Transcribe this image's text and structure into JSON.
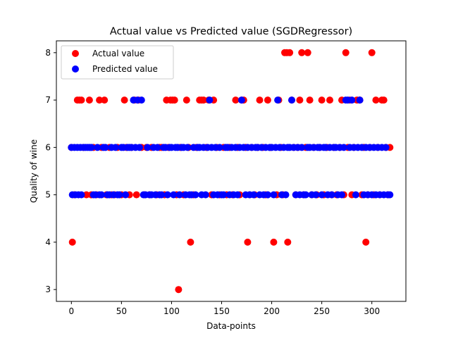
{
  "chart_data": {
    "type": "scatter",
    "title": "Actual value vs Predicted value (SGDRegressor)",
    "xlabel": "Data-points",
    "ylabel": "Quality of wine",
    "xlim": [
      -15,
      334
    ],
    "ylim": [
      2.75,
      8.25
    ],
    "xticks": [
      0,
      50,
      100,
      150,
      200,
      250,
      300
    ],
    "yticks": [
      3,
      4,
      5,
      6,
      7,
      8
    ],
    "grid": false,
    "legend_position": "top-left",
    "series": [
      {
        "name": "Actual value",
        "color": "#ff0000",
        "points": [
          [
            0,
            6
          ],
          [
            1,
            4
          ],
          [
            3,
            5
          ],
          [
            6,
            7
          ],
          [
            8,
            7
          ],
          [
            10,
            7
          ],
          [
            12,
            6
          ],
          [
            15,
            5
          ],
          [
            18,
            7
          ],
          [
            20,
            5
          ],
          [
            22,
            6
          ],
          [
            25,
            5
          ],
          [
            28,
            7
          ],
          [
            30,
            6
          ],
          [
            33,
            7
          ],
          [
            35,
            5
          ],
          [
            38,
            6
          ],
          [
            40,
            5
          ],
          [
            43,
            5
          ],
          [
            46,
            6
          ],
          [
            50,
            5
          ],
          [
            53,
            7
          ],
          [
            55,
            6
          ],
          [
            58,
            5
          ],
          [
            60,
            6
          ],
          [
            63,
            7
          ],
          [
            65,
            5
          ],
          [
            67,
            7
          ],
          [
            70,
            6
          ],
          [
            73,
            5
          ],
          [
            75,
            6
          ],
          [
            78,
            5
          ],
          [
            80,
            6
          ],
          [
            85,
            5
          ],
          [
            88,
            6
          ],
          [
            90,
            6
          ],
          [
            93,
            5
          ],
          [
            95,
            7
          ],
          [
            97,
            6
          ],
          [
            99,
            7
          ],
          [
            101,
            7
          ],
          [
            103,
            7
          ],
          [
            105,
            5
          ],
          [
            107,
            3
          ],
          [
            109,
            6
          ],
          [
            112,
            5
          ],
          [
            115,
            7
          ],
          [
            117,
            6
          ],
          [
            119,
            4
          ],
          [
            122,
            5
          ],
          [
            125,
            6
          ],
          [
            128,
            7
          ],
          [
            130,
            7
          ],
          [
            132,
            7
          ],
          [
            135,
            6
          ],
          [
            137,
            7
          ],
          [
            140,
            5
          ],
          [
            142,
            7
          ],
          [
            145,
            6
          ],
          [
            148,
            5
          ],
          [
            152,
            6
          ],
          [
            155,
            5
          ],
          [
            158,
            6
          ],
          [
            161,
            5
          ],
          [
            164,
            7
          ],
          [
            166,
            6
          ],
          [
            168,
            5
          ],
          [
            170,
            7
          ],
          [
            172,
            7
          ],
          [
            174,
            6
          ],
          [
            176,
            4
          ],
          [
            178,
            5
          ],
          [
            180,
            6
          ],
          [
            183,
            5
          ],
          [
            186,
            6
          ],
          [
            188,
            7
          ],
          [
            191,
            6
          ],
          [
            194,
            5
          ],
          [
            196,
            7
          ],
          [
            199,
            6
          ],
          [
            202,
            4
          ],
          [
            205,
            5
          ],
          [
            207,
            7
          ],
          [
            209,
            6
          ],
          [
            211,
            5
          ],
          [
            213,
            8
          ],
          [
            215,
            8
          ],
          [
            216,
            4
          ],
          [
            218,
            8
          ],
          [
            220,
            7
          ],
          [
            222,
            6
          ],
          [
            224,
            5
          ],
          [
            226,
            6
          ],
          [
            228,
            7
          ],
          [
            230,
            8
          ],
          [
            232,
            5
          ],
          [
            234,
            6
          ],
          [
            236,
            8
          ],
          [
            238,
            7
          ],
          [
            240,
            5
          ],
          [
            242,
            6
          ],
          [
            245,
            5
          ],
          [
            248,
            6
          ],
          [
            250,
            7
          ],
          [
            252,
            5
          ],
          [
            255,
            6
          ],
          [
            258,
            7
          ],
          [
            260,
            5
          ],
          [
            262,
            6
          ],
          [
            265,
            5
          ],
          [
            268,
            6
          ],
          [
            270,
            7
          ],
          [
            272,
            5
          ],
          [
            274,
            8
          ],
          [
            276,
            6
          ],
          [
            278,
            7
          ],
          [
            280,
            5
          ],
          [
            282,
            6
          ],
          [
            285,
            7
          ],
          [
            288,
            7
          ],
          [
            290,
            5
          ],
          [
            292,
            6
          ],
          [
            294,
            4
          ],
          [
            296,
            5
          ],
          [
            298,
            6
          ],
          [
            300,
            8
          ],
          [
            302,
            5
          ],
          [
            304,
            7
          ],
          [
            306,
            6
          ],
          [
            308,
            5
          ],
          [
            310,
            7
          ],
          [
            312,
            7
          ],
          [
            314,
            6
          ],
          [
            316,
            5
          ],
          [
            318,
            6
          ]
        ]
      },
      {
        "name": "Predicted value",
        "color": "#0000ff",
        "points": [
          [
            0,
            6
          ],
          [
            1,
            5
          ],
          [
            3,
            6
          ],
          [
            4,
            5
          ],
          [
            6,
            6
          ],
          [
            7,
            5
          ],
          [
            9,
            6
          ],
          [
            10,
            5
          ],
          [
            12,
            6
          ],
          [
            14,
            6
          ],
          [
            16,
            6
          ],
          [
            18,
            6
          ],
          [
            20,
            6
          ],
          [
            22,
            5
          ],
          [
            24,
            5
          ],
          [
            26,
            6
          ],
          [
            28,
            5
          ],
          [
            30,
            5
          ],
          [
            32,
            6
          ],
          [
            34,
            6
          ],
          [
            36,
            5
          ],
          [
            38,
            5
          ],
          [
            40,
            6
          ],
          [
            42,
            5
          ],
          [
            44,
            6
          ],
          [
            46,
            5
          ],
          [
            48,
            5
          ],
          [
            50,
            6
          ],
          [
            52,
            6
          ],
          [
            54,
            5
          ],
          [
            56,
            6
          ],
          [
            58,
            6
          ],
          [
            60,
            6
          ],
          [
            62,
            7
          ],
          [
            64,
            6
          ],
          [
            66,
            7
          ],
          [
            68,
            6
          ],
          [
            70,
            7
          ],
          [
            72,
            5
          ],
          [
            74,
            5
          ],
          [
            76,
            6
          ],
          [
            78,
            5
          ],
          [
            80,
            5
          ],
          [
            82,
            6
          ],
          [
            84,
            5
          ],
          [
            86,
            6
          ],
          [
            88,
            5
          ],
          [
            90,
            5
          ],
          [
            92,
            6
          ],
          [
            94,
            6
          ],
          [
            96,
            5
          ],
          [
            98,
            6
          ],
          [
            100,
            6
          ],
          [
            102,
            5
          ],
          [
            104,
            6
          ],
          [
            106,
            6
          ],
          [
            108,
            5
          ],
          [
            110,
            6
          ],
          [
            112,
            6
          ],
          [
            114,
            5
          ],
          [
            116,
            6
          ],
          [
            118,
            5
          ],
          [
            120,
            5
          ],
          [
            122,
            6
          ],
          [
            124,
            5
          ],
          [
            126,
            6
          ],
          [
            128,
            6
          ],
          [
            130,
            5
          ],
          [
            132,
            6
          ],
          [
            134,
            5
          ],
          [
            136,
            6
          ],
          [
            138,
            7
          ],
          [
            140,
            6
          ],
          [
            142,
            5
          ],
          [
            144,
            6
          ],
          [
            146,
            5
          ],
          [
            148,
            6
          ],
          [
            150,
            5
          ],
          [
            152,
            5
          ],
          [
            154,
            6
          ],
          [
            156,
            6
          ],
          [
            158,
            5
          ],
          [
            160,
            6
          ],
          [
            162,
            5
          ],
          [
            164,
            6
          ],
          [
            166,
            5
          ],
          [
            168,
            6
          ],
          [
            170,
            7
          ],
          [
            172,
            6
          ],
          [
            174,
            5
          ],
          [
            176,
            6
          ],
          [
            178,
            5
          ],
          [
            180,
            6
          ],
          [
            182,
            5
          ],
          [
            184,
            6
          ],
          [
            186,
            6
          ],
          [
            188,
            5
          ],
          [
            190,
            6
          ],
          [
            192,
            5
          ],
          [
            194,
            6
          ],
          [
            196,
            5
          ],
          [
            198,
            6
          ],
          [
            200,
            6
          ],
          [
            202,
            5
          ],
          [
            204,
            6
          ],
          [
            206,
            7
          ],
          [
            208,
            6
          ],
          [
            210,
            5
          ],
          [
            212,
            6
          ],
          [
            214,
            5
          ],
          [
            216,
            6
          ],
          [
            218,
            6
          ],
          [
            220,
            7
          ],
          [
            222,
            6
          ],
          [
            224,
            5
          ],
          [
            226,
            6
          ],
          [
            228,
            5
          ],
          [
            230,
            6
          ],
          [
            232,
            5
          ],
          [
            234,
            5
          ],
          [
            236,
            6
          ],
          [
            238,
            6
          ],
          [
            240,
            5
          ],
          [
            242,
            6
          ],
          [
            244,
            5
          ],
          [
            246,
            6
          ],
          [
            248,
            6
          ],
          [
            250,
            5
          ],
          [
            252,
            6
          ],
          [
            254,
            6
          ],
          [
            256,
            5
          ],
          [
            258,
            6
          ],
          [
            260,
            5
          ],
          [
            262,
            6
          ],
          [
            264,
            6
          ],
          [
            266,
            5
          ],
          [
            268,
            6
          ],
          [
            270,
            5
          ],
          [
            272,
            6
          ],
          [
            274,
            7
          ],
          [
            276,
            7
          ],
          [
            278,
            6
          ],
          [
            280,
            7
          ],
          [
            282,
            6
          ],
          [
            284,
            5
          ],
          [
            286,
            6
          ],
          [
            288,
            7
          ],
          [
            290,
            6
          ],
          [
            292,
            5
          ],
          [
            294,
            6
          ],
          [
            296,
            5
          ],
          [
            298,
            6
          ],
          [
            300,
            5
          ],
          [
            302,
            6
          ],
          [
            304,
            5
          ],
          [
            306,
            6
          ],
          [
            308,
            5
          ],
          [
            310,
            6
          ],
          [
            312,
            5
          ],
          [
            314,
            6
          ],
          [
            316,
            5
          ],
          [
            318,
            5
          ]
        ]
      }
    ]
  }
}
